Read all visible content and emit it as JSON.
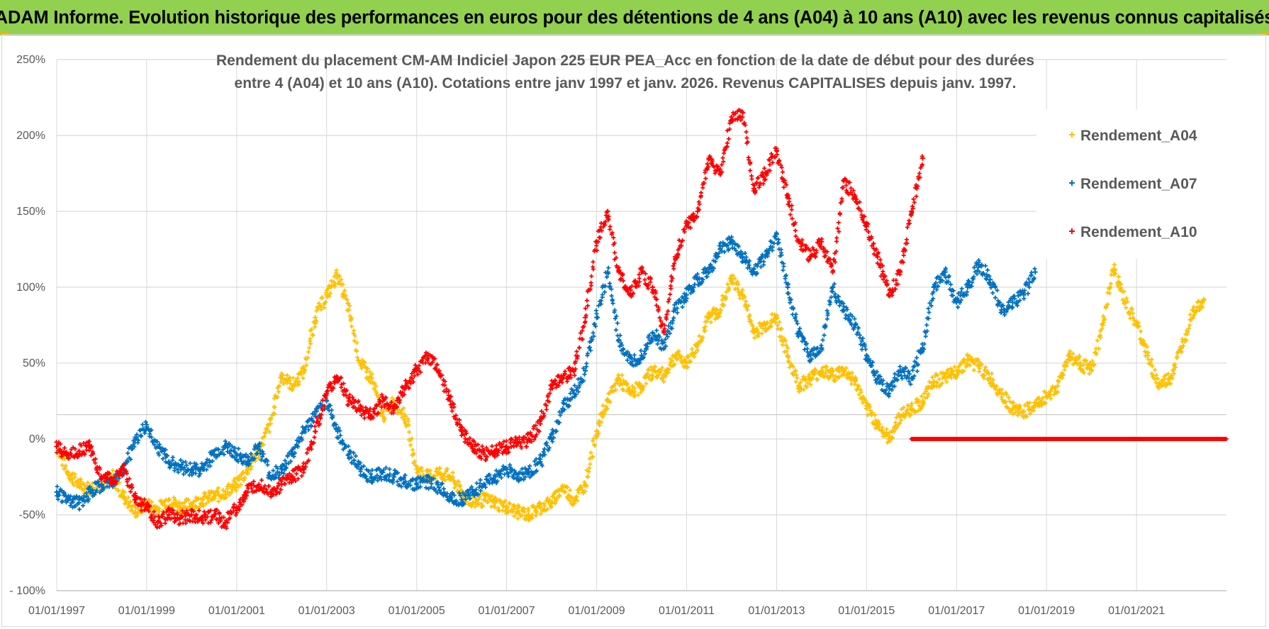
{
  "header": {
    "title": "ADAM Informe. Evolution historique des performances en euros pour des détentions de 4 ans (A04) à 10 ans (A10) avec les revenus connus capitalisés"
  },
  "colors": {
    "header_bg": "#92d050",
    "A04": "#ffc000",
    "A07": "#0070c0",
    "A10": "#ff0000",
    "grid": "#d9d9d9",
    "text": "#595959"
  },
  "chart_data": {
    "type": "scatter",
    "title": "",
    "subtitle_lines": [
      "Rendement du placement CM-AM Indiciel Japon 225 EUR PEA_Acc en fonction de la date de début pour des durées",
      "entre 4 (A04) et 10 ans (A10). Cotations entre janv 1997 et janv. 2026. Revenus CAPITALISES depuis janv. 1997."
    ],
    "xlabel": "",
    "ylabel": "",
    "x_range": [
      "1997-01-01",
      "2023-01-01"
    ],
    "x_tick_labels": [
      "01/01/1997",
      "01/01/1999",
      "01/01/2001",
      "01/01/2003",
      "01/01/2005",
      "01/01/2007",
      "01/01/2009",
      "01/01/2011",
      "01/01/2013",
      "01/01/2015",
      "01/01/2017",
      "01/01/2019",
      "01/01/2021"
    ],
    "y_range": [
      -100,
      250
    ],
    "y_ticks": [
      -100,
      -50,
      0,
      50,
      100,
      150,
      200,
      250
    ],
    "y_tick_labels": [
      "- 100%",
      "-50%",
      "0%",
      "50%",
      "100%",
      "150%",
      "200%",
      "250%"
    ],
    "grid": true,
    "legend_position": "right",
    "series": [
      {
        "name": "Rendement_A04",
        "color": "#ffc000",
        "points": [
          [
            "1997-01-01",
            -5
          ],
          [
            "1997-04-01",
            -22
          ],
          [
            "1997-07-01",
            -30
          ],
          [
            "1997-10-01",
            -33
          ],
          [
            "1998-01-01",
            -30
          ],
          [
            "1998-04-01",
            -25
          ],
          [
            "1998-07-01",
            -38
          ],
          [
            "1998-10-01",
            -48
          ],
          [
            "1999-01-01",
            -43
          ],
          [
            "1999-04-01",
            -46
          ],
          [
            "1999-07-01",
            -40
          ],
          [
            "1999-10-01",
            -45
          ],
          [
            "2000-01-01",
            -43
          ],
          [
            "2000-04-01",
            -40
          ],
          [
            "2000-07-01",
            -38
          ],
          [
            "2000-10-01",
            -35
          ],
          [
            "2001-01-01",
            -30
          ],
          [
            "2001-04-01",
            -20
          ],
          [
            "2001-07-01",
            -8
          ],
          [
            "2001-10-01",
            10
          ],
          [
            "2002-01-01",
            42
          ],
          [
            "2002-04-01",
            35
          ],
          [
            "2002-07-01",
            45
          ],
          [
            "2002-10-01",
            80
          ],
          [
            "2003-01-01",
            95
          ],
          [
            "2003-04-01",
            108
          ],
          [
            "2003-07-01",
            85
          ],
          [
            "2003-10-01",
            50
          ],
          [
            "2004-01-01",
            40
          ],
          [
            "2004-04-01",
            15
          ],
          [
            "2004-07-01",
            25
          ],
          [
            "2004-10-01",
            15
          ],
          [
            "2005-01-01",
            -20
          ],
          [
            "2005-04-01",
            -25
          ],
          [
            "2005-07-01",
            -22
          ],
          [
            "2005-10-01",
            -25
          ],
          [
            "2006-01-01",
            -35
          ],
          [
            "2006-04-01",
            -42
          ],
          [
            "2006-07-01",
            -40
          ],
          [
            "2006-10-01",
            -42
          ],
          [
            "2007-01-01",
            -45
          ],
          [
            "2007-04-01",
            -48
          ],
          [
            "2007-07-01",
            -50
          ],
          [
            "2007-10-01",
            -45
          ],
          [
            "2008-01-01",
            -42
          ],
          [
            "2008-04-01",
            -32
          ],
          [
            "2008-07-01",
            -40
          ],
          [
            "2008-10-01",
            -30
          ],
          [
            "2009-01-01",
            5
          ],
          [
            "2009-04-01",
            25
          ],
          [
            "2009-07-01",
            40
          ],
          [
            "2009-10-01",
            30
          ],
          [
            "2010-01-01",
            35
          ],
          [
            "2010-04-01",
            45
          ],
          [
            "2010-07-01",
            42
          ],
          [
            "2010-10-01",
            55
          ],
          [
            "2011-01-01",
            50
          ],
          [
            "2011-04-01",
            62
          ],
          [
            "2011-07-01",
            80
          ],
          [
            "2011-10-01",
            85
          ],
          [
            "2012-01-01",
            105
          ],
          [
            "2012-04-01",
            95
          ],
          [
            "2012-07-01",
            70
          ],
          [
            "2012-10-01",
            75
          ],
          [
            "2013-01-01",
            80
          ],
          [
            "2013-04-01",
            55
          ],
          [
            "2013-07-01",
            35
          ],
          [
            "2013-10-01",
            40
          ],
          [
            "2014-01-01",
            45
          ],
          [
            "2014-04-01",
            42
          ],
          [
            "2014-07-01",
            45
          ],
          [
            "2014-10-01",
            38
          ],
          [
            "2015-01-01",
            20
          ],
          [
            "2015-04-01",
            10
          ],
          [
            "2015-07-01",
            0
          ],
          [
            "2015-10-01",
            15
          ],
          [
            "2016-01-01",
            20
          ],
          [
            "2016-04-01",
            25
          ],
          [
            "2016-07-01",
            38
          ],
          [
            "2016-10-01",
            40
          ],
          [
            "2017-01-01",
            45
          ],
          [
            "2017-04-01",
            52
          ],
          [
            "2017-07-01",
            48
          ],
          [
            "2017-10-01",
            40
          ],
          [
            "2018-01-01",
            30
          ],
          [
            "2018-04-01",
            20
          ],
          [
            "2018-07-01",
            18
          ],
          [
            "2018-10-01",
            22
          ],
          [
            "2019-01-01",
            28
          ],
          [
            "2019-04-01",
            35
          ],
          [
            "2019-07-01",
            55
          ],
          [
            "2019-10-01",
            50
          ],
          [
            "2020-01-01",
            45
          ],
          [
            "2020-04-01",
            75
          ],
          [
            "2020-07-01",
            112
          ],
          [
            "2020-10-01",
            90
          ],
          [
            "2021-01-01",
            75
          ],
          [
            "2021-04-01",
            55
          ],
          [
            "2021-07-01",
            35
          ],
          [
            "2021-10-01",
            40
          ],
          [
            "2022-01-01",
            60
          ],
          [
            "2022-04-01",
            85
          ],
          [
            "2022-07-01",
            92
          ]
        ]
      },
      {
        "name": "Rendement_A07",
        "color": "#0070c0",
        "points": [
          [
            "1997-01-01",
            -35
          ],
          [
            "1997-04-01",
            -40
          ],
          [
            "1997-07-01",
            -42
          ],
          [
            "1997-10-01",
            -35
          ],
          [
            "1998-01-01",
            -30
          ],
          [
            "1998-04-01",
            -28
          ],
          [
            "1998-07-01",
            -20
          ],
          [
            "1998-10-01",
            0
          ],
          [
            "1999-01-01",
            8
          ],
          [
            "1999-04-01",
            -5
          ],
          [
            "1999-07-01",
            -15
          ],
          [
            "1999-10-01",
            -18
          ],
          [
            "2000-01-01",
            -20
          ],
          [
            "2000-04-01",
            -20
          ],
          [
            "2000-07-01",
            -10
          ],
          [
            "2000-10-01",
            -5
          ],
          [
            "2001-01-01",
            -10
          ],
          [
            "2001-04-01",
            -15
          ],
          [
            "2001-07-01",
            -5
          ],
          [
            "2001-10-01",
            -25
          ],
          [
            "2002-01-01",
            -20
          ],
          [
            "2002-04-01",
            -10
          ],
          [
            "2002-07-01",
            5
          ],
          [
            "2002-10-01",
            15
          ],
          [
            "2003-01-01",
            25
          ],
          [
            "2003-04-01",
            5
          ],
          [
            "2003-07-01",
            -10
          ],
          [
            "2003-10-01",
            -20
          ],
          [
            "2004-01-01",
            -25
          ],
          [
            "2004-04-01",
            -22
          ],
          [
            "2004-07-01",
            -25
          ],
          [
            "2004-10-01",
            -28
          ],
          [
            "2005-01-01",
            -30
          ],
          [
            "2005-04-01",
            -28
          ],
          [
            "2005-07-01",
            -32
          ],
          [
            "2005-10-01",
            -38
          ],
          [
            "2006-01-01",
            -40
          ],
          [
            "2006-04-01",
            -35
          ],
          [
            "2006-07-01",
            -30
          ],
          [
            "2006-10-01",
            -25
          ],
          [
            "2007-01-01",
            -20
          ],
          [
            "2007-04-01",
            -25
          ],
          [
            "2007-07-01",
            -22
          ],
          [
            "2007-10-01",
            -15
          ],
          [
            "2008-01-01",
            0
          ],
          [
            "2008-04-01",
            20
          ],
          [
            "2008-07-01",
            30
          ],
          [
            "2008-10-01",
            45
          ],
          [
            "2009-01-01",
            80
          ],
          [
            "2009-04-01",
            110
          ],
          [
            "2009-07-01",
            65
          ],
          [
            "2009-10-01",
            50
          ],
          [
            "2010-01-01",
            55
          ],
          [
            "2010-04-01",
            70
          ],
          [
            "2010-07-01",
            60
          ],
          [
            "2010-10-01",
            85
          ],
          [
            "2011-01-01",
            95
          ],
          [
            "2011-04-01",
            105
          ],
          [
            "2011-07-01",
            110
          ],
          [
            "2011-10-01",
            125
          ],
          [
            "2012-01-01",
            130
          ],
          [
            "2012-04-01",
            120
          ],
          [
            "2012-07-01",
            110
          ],
          [
            "2012-10-01",
            120
          ],
          [
            "2013-01-01",
            135
          ],
          [
            "2013-04-01",
            100
          ],
          [
            "2013-07-01",
            70
          ],
          [
            "2013-10-01",
            55
          ],
          [
            "2014-01-01",
            60
          ],
          [
            "2014-04-01",
            100
          ],
          [
            "2014-07-01",
            85
          ],
          [
            "2014-10-01",
            75
          ],
          [
            "2015-01-01",
            55
          ],
          [
            "2015-04-01",
            40
          ],
          [
            "2015-07-01",
            30
          ],
          [
            "2015-10-01",
            45
          ],
          [
            "2016-01-01",
            40
          ],
          [
            "2016-04-01",
            60
          ],
          [
            "2016-07-01",
            100
          ],
          [
            "2016-10-01",
            110
          ],
          [
            "2017-01-01",
            90
          ],
          [
            "2017-04-01",
            100
          ],
          [
            "2017-07-01",
            115
          ],
          [
            "2017-10-01",
            105
          ],
          [
            "2018-01-01",
            85
          ],
          [
            "2018-04-01",
            90
          ],
          [
            "2018-07-01",
            95
          ],
          [
            "2018-10-01",
            110
          ]
        ]
      },
      {
        "name": "Rendement_A10",
        "color": "#ff0000",
        "points": [
          [
            "1997-01-01",
            -5
          ],
          [
            "1997-04-01",
            -10
          ],
          [
            "1997-07-01",
            -8
          ],
          [
            "1997-10-01",
            -5
          ],
          [
            "1998-01-01",
            -25
          ],
          [
            "1998-04-01",
            -28
          ],
          [
            "1998-07-01",
            -20
          ],
          [
            "1998-10-01",
            -40
          ],
          [
            "1999-01-01",
            -45
          ],
          [
            "1999-04-01",
            -55
          ],
          [
            "1999-07-01",
            -50
          ],
          [
            "1999-10-01",
            -52
          ],
          [
            "2000-01-01",
            -50
          ],
          [
            "2000-04-01",
            -52
          ],
          [
            "2000-07-01",
            -50
          ],
          [
            "2000-10-01",
            -55
          ],
          [
            "2001-01-01",
            -45
          ],
          [
            "2001-04-01",
            -35
          ],
          [
            "2001-07-01",
            -30
          ],
          [
            "2001-10-01",
            -35
          ],
          [
            "2002-01-01",
            -30
          ],
          [
            "2002-04-01",
            -25
          ],
          [
            "2002-07-01",
            -20
          ],
          [
            "2002-10-01",
            5
          ],
          [
            "2003-01-01",
            30
          ],
          [
            "2003-04-01",
            40
          ],
          [
            "2003-07-01",
            25
          ],
          [
            "2003-10-01",
            20
          ],
          [
            "2004-01-01",
            15
          ],
          [
            "2004-04-01",
            25
          ],
          [
            "2004-07-01",
            20
          ],
          [
            "2004-10-01",
            35
          ],
          [
            "2005-01-01",
            45
          ],
          [
            "2005-04-01",
            55
          ],
          [
            "2005-07-01",
            45
          ],
          [
            "2005-10-01",
            25
          ],
          [
            "2006-01-01",
            5
          ],
          [
            "2006-04-01",
            -5
          ],
          [
            "2006-07-01",
            -10
          ],
          [
            "2006-10-01",
            -8
          ],
          [
            "2007-01-01",
            -5
          ],
          [
            "2007-04-01",
            -3
          ],
          [
            "2007-07-01",
            0
          ],
          [
            "2007-10-01",
            10
          ],
          [
            "2008-01-01",
            35
          ],
          [
            "2008-04-01",
            40
          ],
          [
            "2008-07-01",
            45
          ],
          [
            "2008-10-01",
            80
          ],
          [
            "2009-01-01",
            130
          ],
          [
            "2009-04-01",
            150
          ],
          [
            "2009-07-01",
            110
          ],
          [
            "2009-10-01",
            95
          ],
          [
            "2010-01-01",
            110
          ],
          [
            "2010-04-01",
            100
          ],
          [
            "2010-07-01",
            70
          ],
          [
            "2010-10-01",
            120
          ],
          [
            "2011-01-01",
            140
          ],
          [
            "2011-04-01",
            150
          ],
          [
            "2011-07-01",
            185
          ],
          [
            "2011-10-01",
            175
          ],
          [
            "2012-01-01",
            210
          ],
          [
            "2012-04-01",
            215
          ],
          [
            "2012-07-01",
            165
          ],
          [
            "2012-10-01",
            175
          ],
          [
            "2013-01-01",
            190
          ],
          [
            "2013-04-01",
            160
          ],
          [
            "2013-07-01",
            130
          ],
          [
            "2013-10-01",
            120
          ],
          [
            "2014-01-01",
            130
          ],
          [
            "2014-04-01",
            110
          ],
          [
            "2014-07-01",
            170
          ],
          [
            "2014-10-01",
            160
          ],
          [
            "2015-01-01",
            140
          ],
          [
            "2015-04-01",
            120
          ],
          [
            "2015-07-01",
            95
          ],
          [
            "2015-10-01",
            110
          ],
          [
            "2016-01-01",
            150
          ],
          [
            "2016-04-01",
            185
          ]
        ],
        "tail_value": 0,
        "tail_range": [
          "2016-01-01",
          "2023-01-01"
        ]
      }
    ]
  }
}
